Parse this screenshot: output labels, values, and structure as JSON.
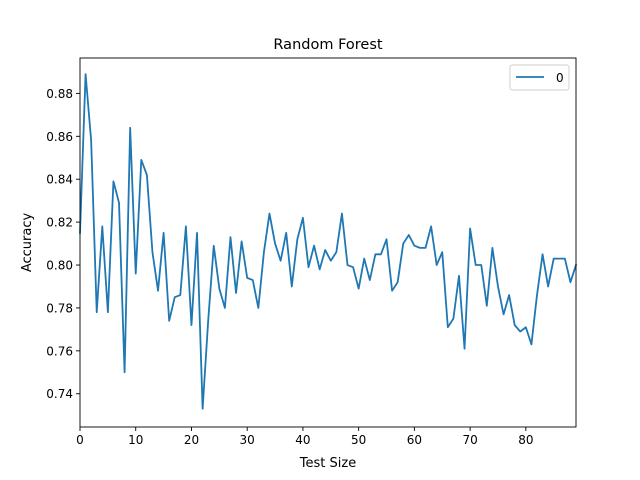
{
  "chart_data": {
    "type": "line",
    "title": "Random Forest",
    "xlabel": "Test Size",
    "ylabel": "Accuracy",
    "xlim": [
      0,
      89
    ],
    "ylim": [
      0.7245,
      0.8965
    ],
    "xticks": [
      0,
      10,
      20,
      30,
      40,
      50,
      60,
      70,
      80
    ],
    "yticks": [
      0.74,
      0.76,
      0.78,
      0.8,
      0.82,
      0.84,
      0.86,
      0.88
    ],
    "ytick_labels": [
      "0.74",
      "0.76",
      "0.78",
      "0.80",
      "0.82",
      "0.84",
      "0.86",
      "0.88"
    ],
    "grid": false,
    "legend": {
      "position": "top-right",
      "entries": [
        "0"
      ]
    },
    "series": [
      {
        "name": "0",
        "color": "#1f77b4",
        "x": [
          0,
          1,
          2,
          3,
          4,
          5,
          6,
          7,
          8,
          9,
          10,
          11,
          12,
          13,
          14,
          15,
          16,
          17,
          18,
          19,
          20,
          21,
          22,
          23,
          24,
          25,
          26,
          27,
          28,
          29,
          30,
          31,
          32,
          33,
          34,
          35,
          36,
          37,
          38,
          39,
          40,
          41,
          42,
          43,
          44,
          45,
          46,
          47,
          48,
          49,
          50,
          51,
          52,
          53,
          54,
          55,
          56,
          57,
          58,
          59,
          60,
          61,
          62,
          63,
          64,
          65,
          66,
          67,
          68,
          69,
          70,
          71,
          72,
          73,
          74,
          75,
          76,
          77,
          78,
          79,
          80,
          81,
          82,
          83,
          84,
          85,
          86,
          87,
          88,
          89
        ],
        "values": [
          0.815,
          0.889,
          0.858,
          0.778,
          0.818,
          0.778,
          0.839,
          0.829,
          0.75,
          0.864,
          0.796,
          0.849,
          0.842,
          0.806,
          0.788,
          0.815,
          0.774,
          0.785,
          0.786,
          0.818,
          0.772,
          0.815,
          0.733,
          0.774,
          0.809,
          0.789,
          0.78,
          0.813,
          0.787,
          0.811,
          0.794,
          0.793,
          0.78,
          0.806,
          0.824,
          0.81,
          0.802,
          0.815,
          0.79,
          0.812,
          0.822,
          0.799,
          0.809,
          0.798,
          0.807,
          0.802,
          0.806,
          0.824,
          0.8,
          0.799,
          0.789,
          0.803,
          0.793,
          0.805,
          0.805,
          0.812,
          0.788,
          0.792,
          0.81,
          0.814,
          0.809,
          0.808,
          0.808,
          0.818,
          0.8,
          0.806,
          0.771,
          0.775,
          0.795,
          0.761,
          0.817,
          0.8,
          0.8,
          0.781,
          0.808,
          0.79,
          0.777,
          0.786,
          0.772,
          0.769,
          0.771,
          0.763,
          0.786,
          0.805,
          0.79,
          0.803,
          0.803,
          0.803,
          0.792,
          0.8
        ]
      }
    ]
  }
}
